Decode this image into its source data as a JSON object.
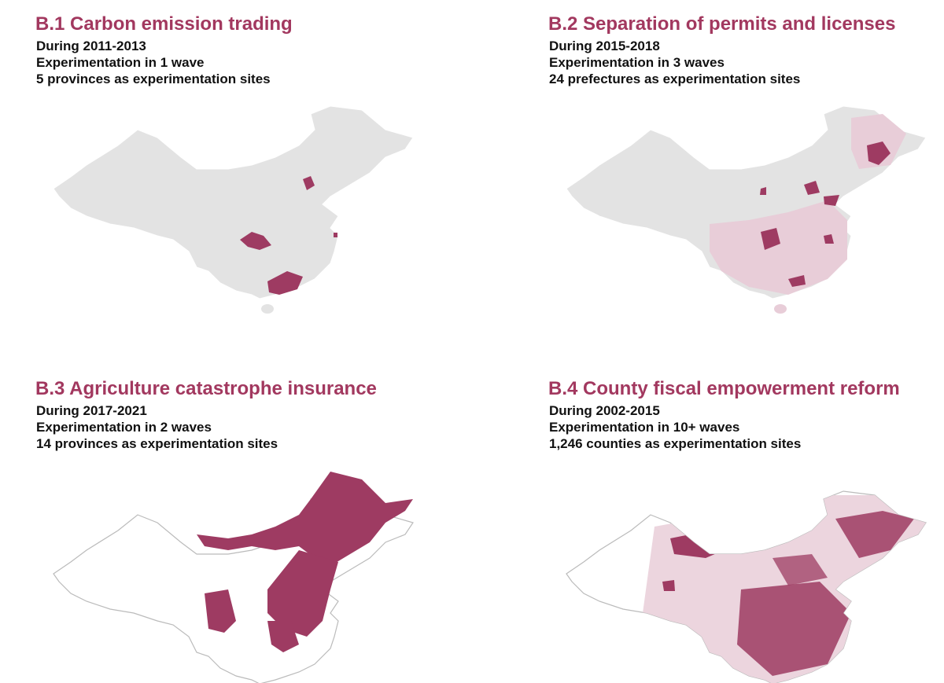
{
  "panels": [
    {
      "title": "B.1 Carbon emission trading",
      "lines": [
        "During 2011-2013",
        "Experimentation in 1 wave",
        "5 provinces as experimentation sites"
      ]
    },
    {
      "title": "B.2 Separation of permits and licenses",
      "lines": [
        "During 2015-2018",
        "Experimentation in 3 waves",
        "24 prefectures as experimentation sites"
      ]
    },
    {
      "title": "B.3 Agriculture catastrophe insurance",
      "lines": [
        "During 2017-2021",
        "Experimentation in 2 waves",
        "14 provinces as experimentation sites"
      ]
    },
    {
      "title": "B.4 County fiscal empowerment reform",
      "lines": [
        "During 2002-2015",
        "Experimentation in 10+ waves",
        "1,246 counties as experimentation sites"
      ]
    }
  ]
}
